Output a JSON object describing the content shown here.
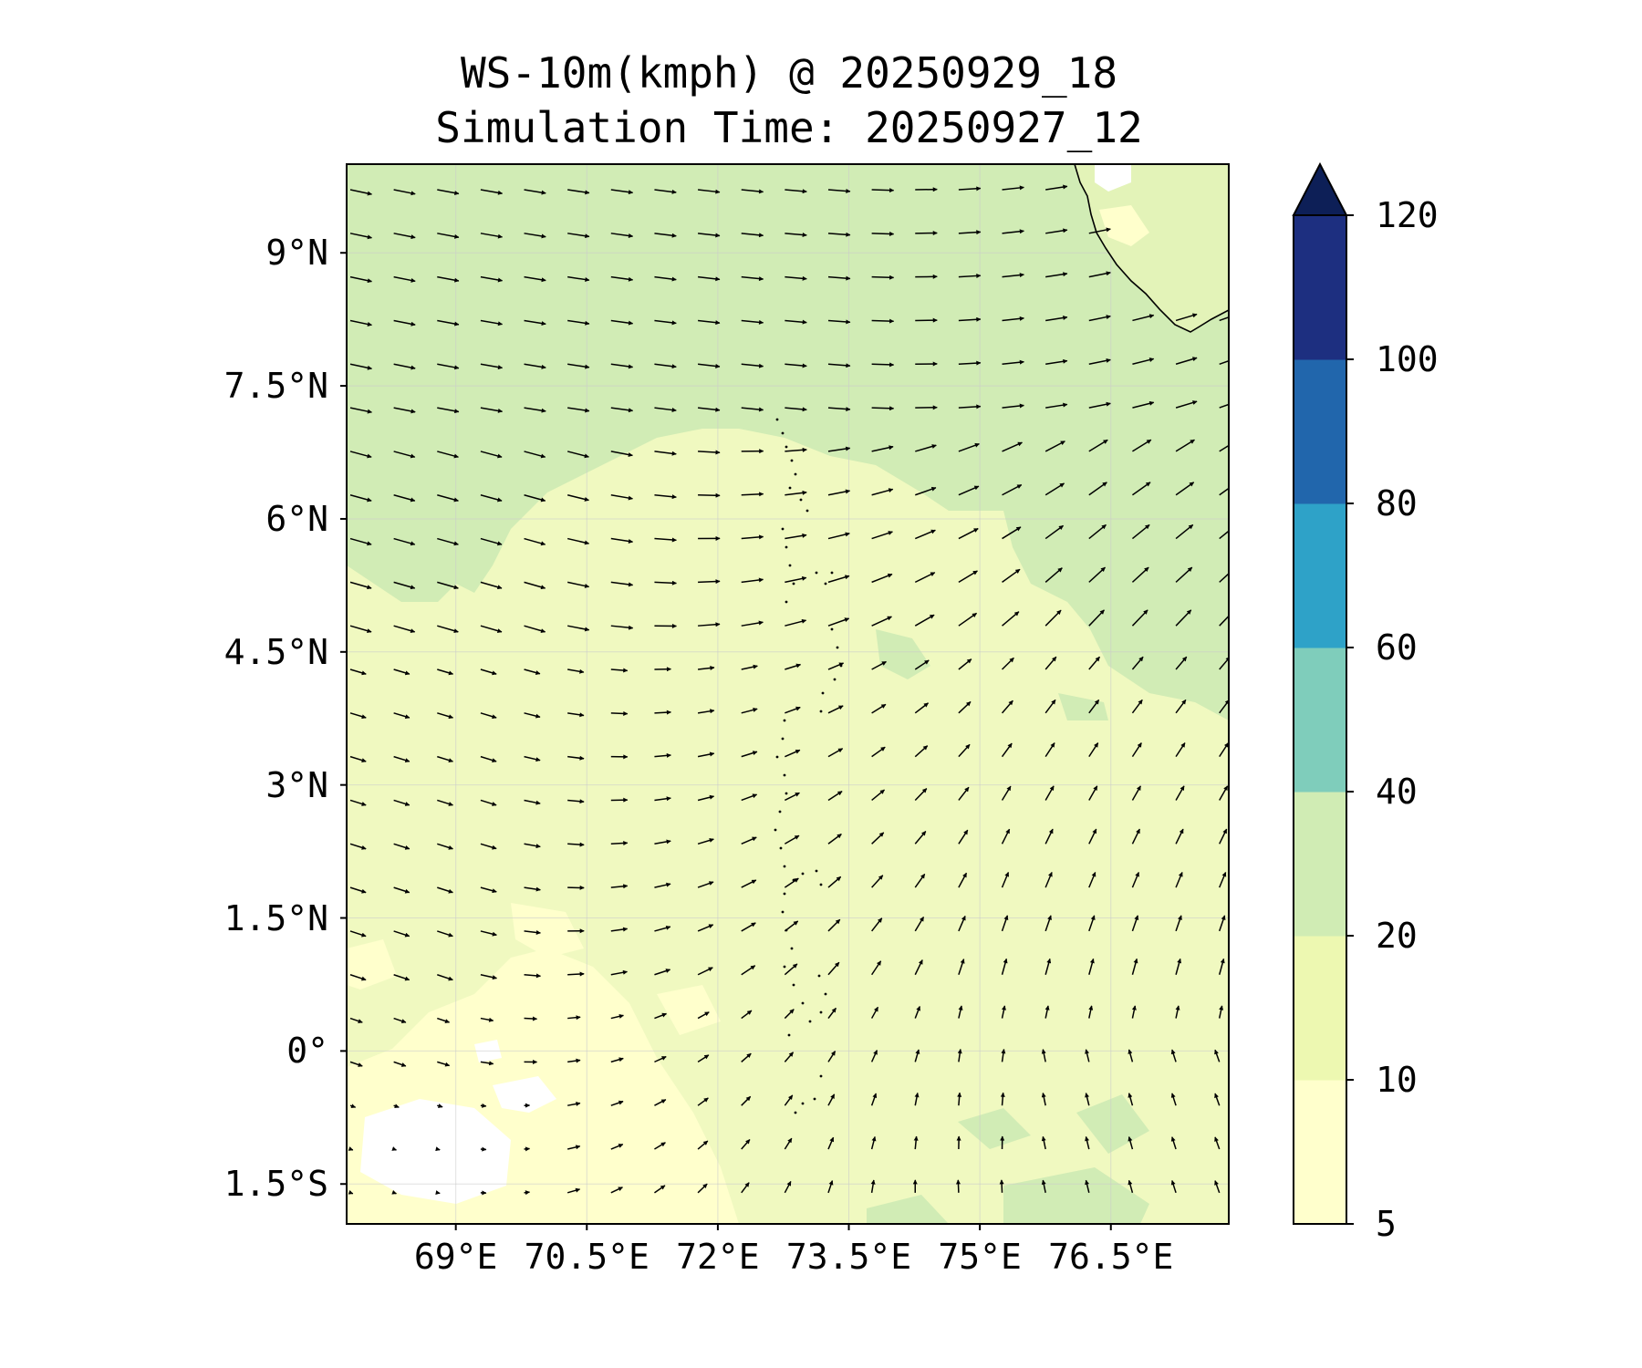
{
  "title": {
    "line1": "WS-10m(kmph) @ 20250929_18",
    "line2": "Simulation Time: 20250927_12"
  },
  "map": {
    "lon_range": [
      67.75,
      77.85
    ],
    "lat_range": [
      -1.95,
      10.0
    ],
    "lat_ticks": [
      {
        "value": 9.0,
        "label": "9°N"
      },
      {
        "value": 7.5,
        "label": "7.5°N"
      },
      {
        "value": 6.0,
        "label": "6°N"
      },
      {
        "value": 4.5,
        "label": "4.5°N"
      },
      {
        "value": 3.0,
        "label": "3°N"
      },
      {
        "value": 1.5,
        "label": "1.5°N"
      },
      {
        "value": 0.0,
        "label": "0°"
      },
      {
        "value": -1.5,
        "label": "1.5°S"
      }
    ],
    "lon_ticks": [
      {
        "value": 69.0,
        "label": "69°E"
      },
      {
        "value": 70.5,
        "label": "70.5°E"
      },
      {
        "value": 72.0,
        "label": "72°E"
      },
      {
        "value": 73.5,
        "label": "73.5°E"
      },
      {
        "value": 75.0,
        "label": "75°E"
      },
      {
        "value": 76.5,
        "label": "76.5°E"
      }
    ],
    "gridlines": true,
    "field_colors": {
      "lt10": "#ffffcc",
      "10_20": "#f0f9c0",
      "20_40": "#d1ecb5"
    }
  },
  "colorbar": {
    "levels": [
      5,
      10,
      20,
      40,
      60,
      80,
      100,
      120
    ],
    "labels": [
      "5",
      "10",
      "20",
      "40",
      "60",
      "80",
      "100",
      "120"
    ],
    "colors": [
      "#ffffcc",
      "#edf8b1",
      "#d0ecb4",
      "#7fcdbb",
      "#2ea2c8",
      "#2166ac",
      "#1d2f80"
    ],
    "extend_color": "#0d1f57",
    "extend": "max"
  }
}
